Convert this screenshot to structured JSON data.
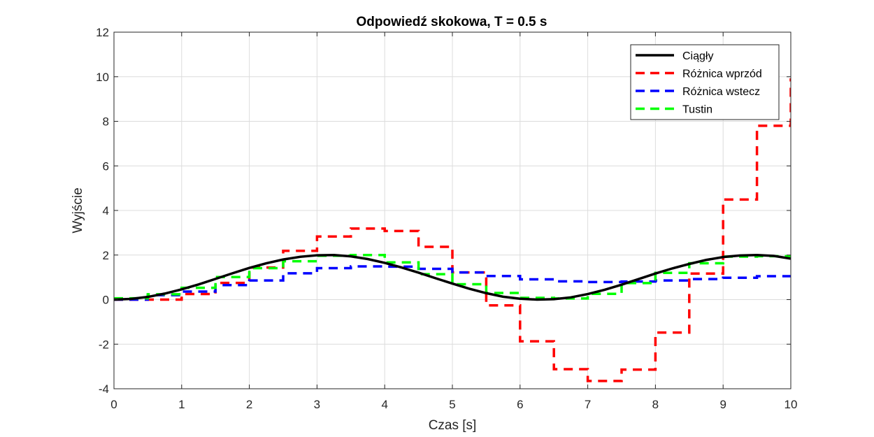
{
  "chart_data": {
    "type": "line",
    "title": "Odpowiedź skokowa, T = 0.5 s",
    "xlabel": "Czas [s]",
    "ylabel": "Wyjście",
    "xlim": [
      0,
      10
    ],
    "ylim": [
      -4,
      12
    ],
    "xticks": [
      0,
      1,
      2,
      3,
      4,
      5,
      6,
      7,
      8,
      9,
      10
    ],
    "yticks": [
      -4,
      -2,
      0,
      2,
      4,
      6,
      8,
      10,
      12
    ],
    "grid": true,
    "legend_position": "top-right",
    "series": [
      {
        "name": "Ciągły",
        "style": "solid",
        "color": "#000000",
        "x": [
          0,
          0.25,
          0.5,
          0.75,
          1,
          1.25,
          1.5,
          1.75,
          2,
          2.25,
          2.5,
          2.75,
          3,
          3.25,
          3.5,
          3.75,
          4,
          4.25,
          4.5,
          4.75,
          5,
          5.25,
          5.5,
          5.75,
          6,
          6.25,
          6.5,
          6.75,
          7,
          7.25,
          7.5,
          7.75,
          8,
          8.25,
          8.5,
          8.75,
          9,
          9.25,
          9.5,
          9.75,
          10
        ],
        "y": [
          0,
          0.03,
          0.12,
          0.27,
          0.46,
          0.68,
          0.93,
          1.18,
          1.42,
          1.63,
          1.8,
          1.92,
          1.99,
          2.0,
          1.94,
          1.82,
          1.65,
          1.44,
          1.21,
          0.96,
          0.72,
          0.49,
          0.29,
          0.13,
          0.04,
          0.0,
          0.02,
          0.1,
          0.25,
          0.44,
          0.67,
          0.92,
          1.17,
          1.4,
          1.6,
          1.78,
          1.91,
          1.98,
          2.0,
          1.96,
          1.84
        ]
      },
      {
        "name": "Różnica wprzód",
        "style": "dashed-step",
        "color": "#ff0000",
        "x": [
          0,
          0.5,
          1,
          1.5,
          2,
          2.5,
          3,
          3.5,
          4,
          4.5,
          5,
          5.5,
          6,
          6.5,
          7,
          7.5,
          8,
          8.5,
          9,
          9.5,
          10
        ],
        "y": [
          0,
          0,
          0.25,
          0.75,
          1.44,
          2.19,
          2.83,
          3.19,
          3.08,
          2.37,
          1.22,
          -0.26,
          -1.87,
          -3.12,
          -3.65,
          -3.14,
          -1.48,
          1.17,
          4.49,
          7.8,
          9.93
        ]
      },
      {
        "name": "Różnica wstecz",
        "style": "dashed-step",
        "color": "#0000ff",
        "x": [
          0,
          0.5,
          1,
          1.5,
          2,
          2.5,
          3,
          3.5,
          4,
          4.5,
          5,
          5.5,
          6,
          6.5,
          7,
          7.5,
          8,
          8.5,
          9,
          9.5,
          10
        ],
        "y": [
          0,
          0.2,
          0.36,
          0.65,
          0.86,
          1.18,
          1.41,
          1.49,
          1.48,
          1.38,
          1.22,
          1.06,
          0.91,
          0.82,
          0.79,
          0.81,
          0.86,
          0.92,
          0.98,
          1.05,
          1.1
        ]
      },
      {
        "name": "Tustin",
        "style": "dashed-step",
        "color": "#00ff00",
        "x": [
          0,
          0.5,
          1,
          1.5,
          2,
          2.5,
          3,
          3.5,
          4,
          4.5,
          5,
          5.5,
          6,
          6.5,
          7,
          7.5,
          8,
          8.5,
          9,
          9.5,
          10
        ],
        "y": [
          0.06,
          0.24,
          0.53,
          1.01,
          1.41,
          1.72,
          1.97,
          2.0,
          1.67,
          1.14,
          0.69,
          0.3,
          0.08,
          0.05,
          0.26,
          0.74,
          1.2,
          1.63,
          1.93,
          1.95,
          1.84
        ]
      }
    ]
  }
}
